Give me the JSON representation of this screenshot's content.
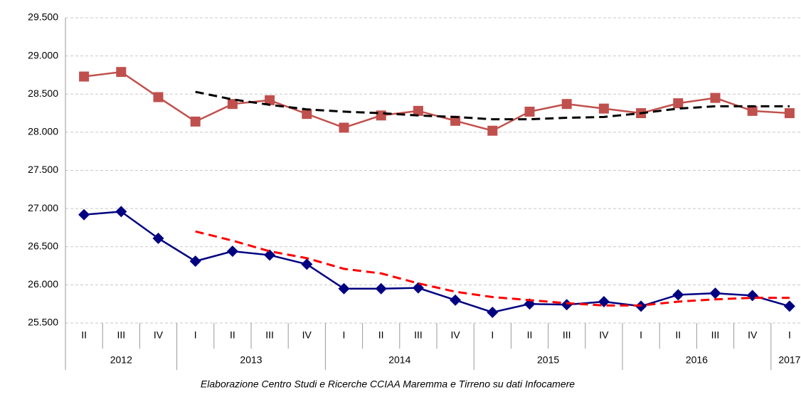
{
  "chart_data": {
    "type": "line",
    "caption": "Elaborazione Centro Studi e Ricerche CCIAA Maremma e Tirreno su dati Infocamere",
    "categories": [
      "II",
      "III",
      "IV",
      "I",
      "II",
      "III",
      "IV",
      "I",
      "II",
      "III",
      "IV",
      "I",
      "II",
      "III",
      "IV",
      "I",
      "II",
      "III",
      "IV",
      "I"
    ],
    "groups": [
      {
        "label": "2012",
        "span": 3
      },
      {
        "label": "2013",
        "span": 4
      },
      {
        "label": "2014",
        "span": 4
      },
      {
        "label": "2015",
        "span": 4
      },
      {
        "label": "2016",
        "span": 4
      },
      {
        "label": "2017",
        "span": 1
      }
    ],
    "ylim": [
      25500,
      29500
    ],
    "yticks": [
      {
        "value": 25500,
        "label": "25.500"
      },
      {
        "value": 26000,
        "label": "26.000"
      },
      {
        "value": 26500,
        "label": "26.500"
      },
      {
        "value": 27000,
        "label": "27.000"
      },
      {
        "value": 27500,
        "label": "27.500"
      },
      {
        "value": 28000,
        "label": "28.000"
      },
      {
        "value": 28500,
        "label": "28.500"
      },
      {
        "value": 29000,
        "label": "29.000"
      },
      {
        "value": 29500,
        "label": "29.500"
      }
    ],
    "grid": true,
    "series": [
      {
        "color": "#c0504d",
        "marker": "square",
        "values": [
          28730,
          28790,
          28460,
          28140,
          28370,
          28420,
          28240,
          28060,
          28220,
          28280,
          28150,
          28020,
          28270,
          28370,
          28310,
          28250,
          28380,
          28450,
          28280,
          28250
        ]
      },
      {
        "color": "#000080",
        "marker": "diamond",
        "values": [
          26920,
          26960,
          26610,
          26310,
          26440,
          26390,
          26270,
          25950,
          25950,
          25960,
          25800,
          25640,
          25750,
          25740,
          25780,
          25720,
          25870,
          25890,
          25860,
          25720
        ]
      },
      {
        "color": "#000000",
        "dashed": true,
        "values": [
          null,
          null,
          null,
          28530,
          28430,
          28360,
          28300,
          28270,
          28250,
          28220,
          28200,
          28170,
          28170,
          28190,
          28200,
          28250,
          28310,
          28340,
          28340,
          28340
        ]
      },
      {
        "color": "#ff0000",
        "dashed": true,
        "values": [
          null,
          null,
          null,
          26700,
          26580,
          26440,
          26350,
          26210,
          26150,
          26020,
          25910,
          25840,
          25800,
          25760,
          25730,
          25730,
          25780,
          25810,
          25830,
          25830
        ]
      }
    ]
  }
}
